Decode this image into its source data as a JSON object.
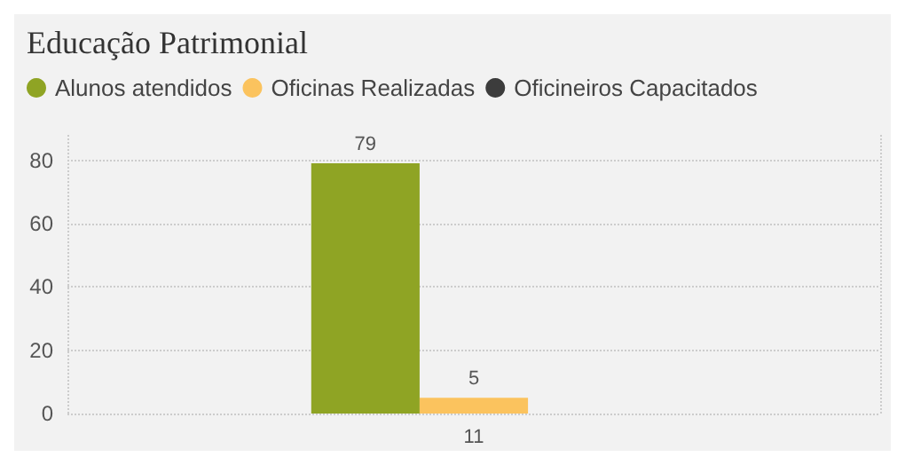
{
  "chart_data": {
    "type": "bar",
    "title": "Educação Patrimonial",
    "categories": [
      "11"
    ],
    "series": [
      {
        "name": "Alunos atendidos",
        "color": "#8fa424",
        "values": [
          79
        ]
      },
      {
        "name": "Oficinas Realizadas",
        "color": "#fbc35e",
        "values": [
          5
        ]
      },
      {
        "name": "Oficineiros Capacitados",
        "color": "#3c3c3c",
        "values": [
          null
        ]
      }
    ],
    "ylim": [
      0,
      88
    ],
    "yticks": [
      0,
      20,
      40,
      60,
      80
    ],
    "grid": true,
    "legend": "top left",
    "data_labels": true,
    "marker": "circle"
  }
}
